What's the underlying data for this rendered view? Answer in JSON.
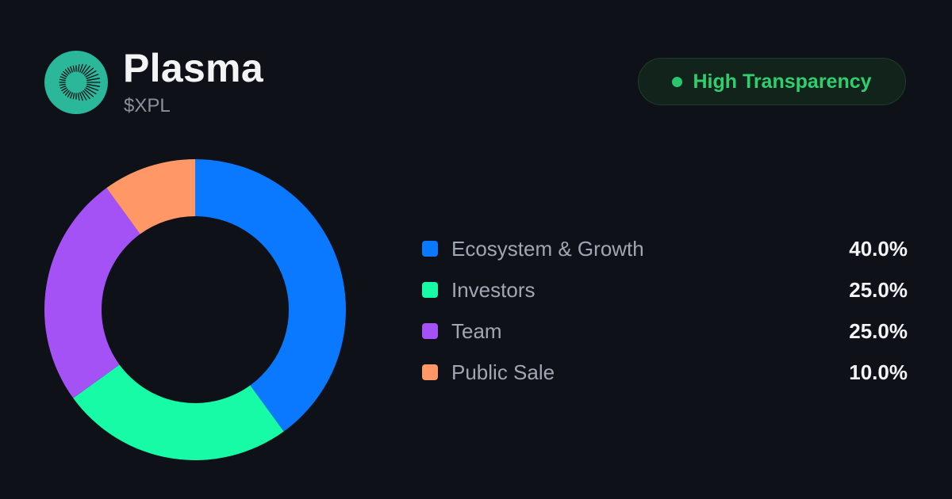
{
  "token": {
    "name": "Plasma",
    "symbol": "$XPL",
    "logo_icon": "plasma-logo-icon",
    "logo_color": "#2bb89a"
  },
  "badge": {
    "label": "High Transparency",
    "dot_color": "#28c76f",
    "text_color": "#2fcf6e"
  },
  "colors": {
    "background": "#0e1117"
  },
  "chart_data": {
    "type": "pie",
    "style": "donut",
    "legend_position": "right",
    "series": [
      {
        "name": "Ecosystem & Growth",
        "value": 40.0,
        "label": "40.0%",
        "color": "#0a78ff"
      },
      {
        "name": "Investors",
        "value": 25.0,
        "label": "25.0%",
        "color": "#17fba7"
      },
      {
        "name": "Team",
        "value": 25.0,
        "label": "25.0%",
        "color": "#a452f5"
      },
      {
        "name": "Public Sale",
        "value": 10.0,
        "label": "10.0%",
        "color": "#ff9866"
      }
    ]
  }
}
